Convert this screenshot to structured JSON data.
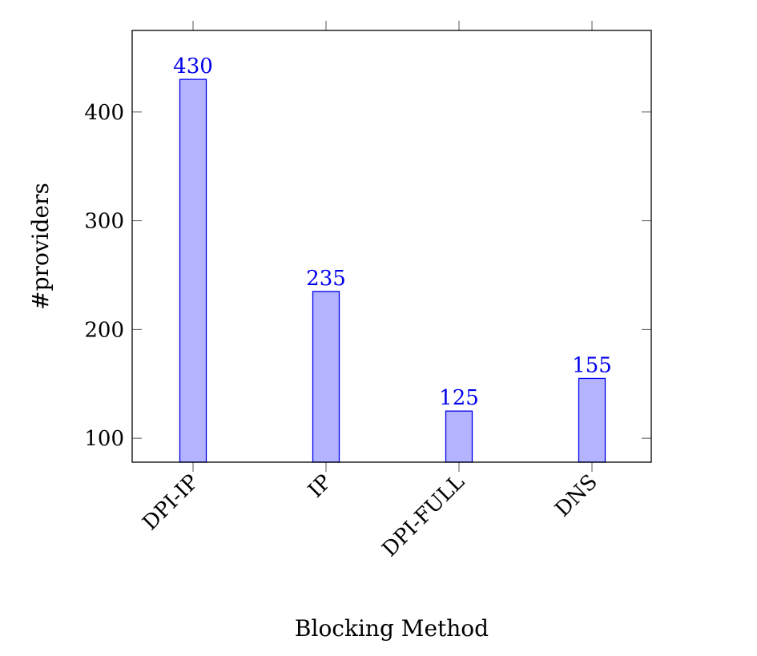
{
  "chart_data": {
    "type": "bar",
    "title": "",
    "xlabel": "Blocking Method",
    "ylabel": "#providers",
    "categories": [
      "DPI-IP",
      "IP",
      "DPI-FULL",
      "DNS"
    ],
    "values": [
      430,
      235,
      125,
      155
    ],
    "ylim": [
      78,
      475
    ],
    "yticks": [
      100,
      200,
      300,
      400
    ],
    "grid": false,
    "legend": "none",
    "bar_fill": "#b3b3ff",
    "bar_stroke": "#0000ee",
    "label_color": "#0000ee"
  }
}
